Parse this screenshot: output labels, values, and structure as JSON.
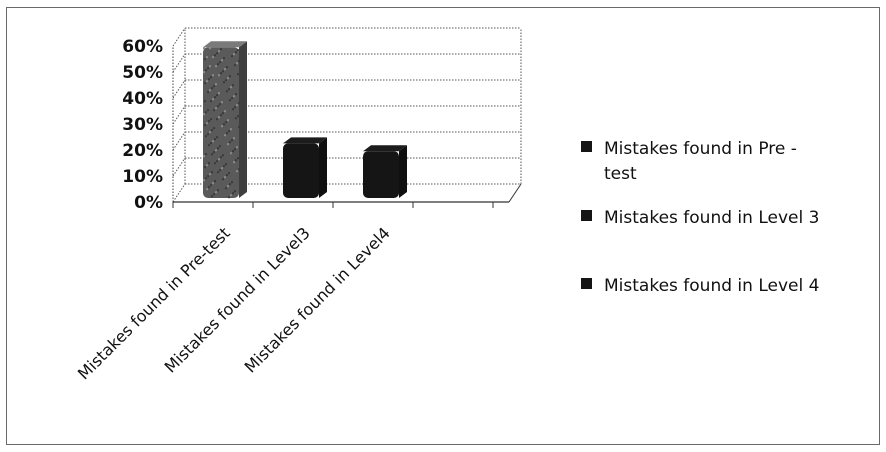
{
  "chart_data": {
    "type": "bar",
    "style": "3d-clustered-column",
    "categories": [
      "Mistakes found in Pre-test",
      "Mistakes found in Level3",
      "Mistakes found in Level4"
    ],
    "series": [
      {
        "name": "Mistakes found in Pre - test",
        "category": "Mistakes found in Pre-test",
        "value": 58,
        "color": "#5a5a5a"
      },
      {
        "name": "Mistakes found in Level 3",
        "category": "Mistakes found in Level3",
        "value": 21,
        "color": "#151515"
      },
      {
        "name": "Mistakes found in Level 4",
        "category": "Mistakes found in Level4",
        "value": 18,
        "color": "#151515"
      }
    ],
    "y_ticks": [
      "0%",
      "10%",
      "20%",
      "30%",
      "40%",
      "50%",
      "60%"
    ],
    "ylim": [
      0,
      60
    ],
    "grid": true,
    "legend_position": "right",
    "legend_items": [
      {
        "label_lines": [
          "Mistakes found  in Pre -",
          "test"
        ],
        "color": "#151515"
      },
      {
        "label_lines": [
          "Mistakes found  in Level 3"
        ],
        "color": "#151515"
      },
      {
        "label_lines": [
          "Mistakes found  in Level 4"
        ],
        "color": "#151515"
      }
    ]
  }
}
